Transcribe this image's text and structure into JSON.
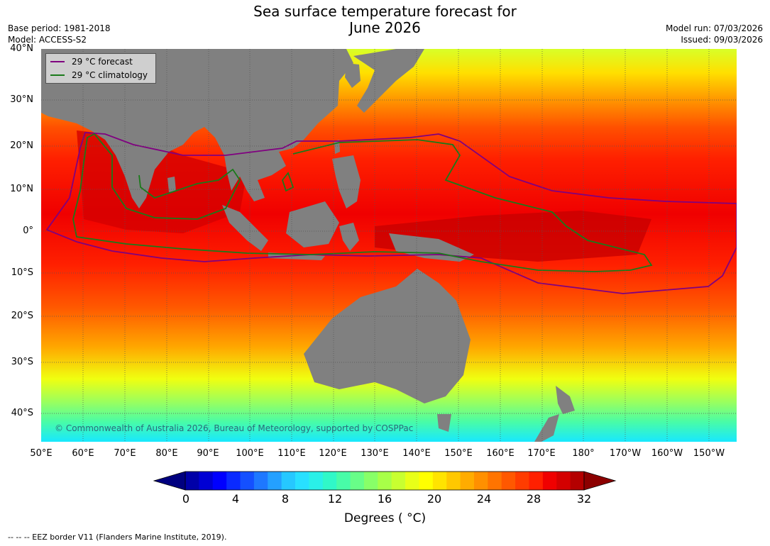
{
  "title": {
    "line1": "Sea surface temperature forecast for",
    "line2": "June 2026"
  },
  "meta": {
    "base_period": "Base period: 1981-2018",
    "model": "Model: ACCESS-S2",
    "model_run": "Model run: 07/03/2026",
    "issued": "Issued: 09/03/2026"
  },
  "legend": {
    "forecast": {
      "label": "29 °C  forecast",
      "color": "#800080"
    },
    "climatology": {
      "label": "29 °C  climatology",
      "color": "#1a7a1a"
    }
  },
  "lat_labels": [
    "40°N",
    "30°N",
    "20°N",
    "10°N",
    "0°",
    "10°S",
    "20°S",
    "30°S",
    "40°S"
  ],
  "lon_labels": [
    "50°E",
    "60°E",
    "70°E",
    "80°E",
    "90°E",
    "100°E",
    "110°E",
    "120°E",
    "130°E",
    "140°E",
    "150°E",
    "160°E",
    "170°E",
    "180°",
    "170°W",
    "160°W",
    "150°W"
  ],
  "copyright": "© Commonwealth of Australia 2026, Bureau of Meteorology, supported by COSPPac",
  "colorbar": {
    "ticks": [
      "0",
      "4",
      "8",
      "12",
      "16",
      "20",
      "24",
      "28",
      "32"
    ],
    "label": "Degrees ( °C)",
    "colors": [
      "#00007f",
      "#0000a8",
      "#0000d4",
      "#0000ff",
      "#0a2aff",
      "#1450ff",
      "#1e78ff",
      "#24a0ff",
      "#26c8ff",
      "#28e0ff",
      "#2af0e8",
      "#30f8c8",
      "#48fca8",
      "#68fe88",
      "#88ff68",
      "#a8ff48",
      "#c8ff30",
      "#e8ff18",
      "#ffff00",
      "#ffe400",
      "#ffc800",
      "#ffac00",
      "#ff9000",
      "#ff7400",
      "#ff5800",
      "#ff3c00",
      "#ff2000",
      "#f00000",
      "#d40000",
      "#b40000",
      "#8c0000"
    ]
  },
  "footer": "--  --  -- EEZ border V11 (Flanders Marine Institute, 2019).",
  "colors": {
    "land": "#808080",
    "grid": "#555555"
  }
}
